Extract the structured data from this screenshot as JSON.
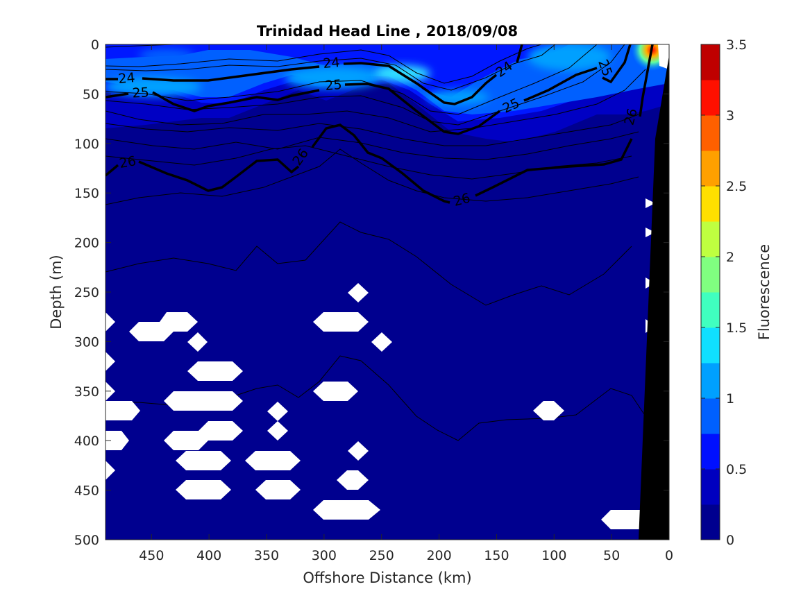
{
  "chart_data": {
    "type": "heatmap",
    "title": "Trinidad Head Line , 2018/09/08",
    "xlabel": "Offshore Distance (km)",
    "ylabel": "Depth (m)",
    "xlim": [
      490,
      0
    ],
    "ylim": [
      0,
      500
    ],
    "x_reversed": true,
    "y_reversed": true,
    "x_ticks": [
      "450",
      "400",
      "350",
      "300",
      "250",
      "200",
      "150",
      "100",
      "50",
      "0"
    ],
    "x_tick_values": [
      450,
      400,
      350,
      300,
      250,
      200,
      150,
      100,
      50,
      0
    ],
    "y_ticks": [
      "0",
      "50",
      "100",
      "150",
      "200",
      "250",
      "300",
      "350",
      "400",
      "450",
      "500"
    ],
    "y_tick_values": [
      0,
      50,
      100,
      150,
      200,
      250,
      300,
      350,
      400,
      450,
      500
    ],
    "colorbar": {
      "label": "Fluorescence",
      "range": [
        0,
        3.5
      ],
      "ticks": [
        "0",
        "0.5",
        "1",
        "1.5",
        "2",
        "2.5",
        "3",
        "3.5"
      ],
      "tick_values": [
        0,
        0.5,
        1,
        1.5,
        2,
        2.5,
        3,
        3.5
      ],
      "levels": 14,
      "colors": [
        "#00008f",
        "#0000bf",
        "#0010ff",
        "#0060ff",
        "#00a0ff",
        "#10e0ff",
        "#40ffbf",
        "#80ff80",
        "#bfff40",
        "#ffe000",
        "#ffa000",
        "#ff6000",
        "#ff1000",
        "#bf0000"
      ]
    },
    "fluorescence_hotspots": [
      {
        "x": 470,
        "depth": 45,
        "value": 1.0
      },
      {
        "x": 420,
        "depth": 48,
        "value": 1.0
      },
      {
        "x": 290,
        "depth": 38,
        "value": 1.2
      },
      {
        "x": 250,
        "depth": 30,
        "value": 1.2
      },
      {
        "x": 200,
        "depth": 45,
        "value": 0.9
      },
      {
        "x": 80,
        "depth": 20,
        "value": 1.0
      },
      {
        "x": 15,
        "depth": 5,
        "value": 3.4
      }
    ],
    "density_contours": [
      {
        "label": "24",
        "x": [
          490,
          450,
          400,
          350,
          300,
          250,
          200,
          190,
          170,
          140,
          125,
          120
        ],
        "depth": [
          35,
          36,
          38,
          33,
          25,
          22,
          45,
          50,
          40,
          15,
          3,
          0
        ]
      },
      {
        "label": "25",
        "x": [
          490,
          450,
          420,
          400,
          370,
          350,
          300,
          250,
          200,
          190,
          160,
          120,
          80,
          50,
          35,
          25
        ],
        "depth": [
          52,
          53,
          63,
          62,
          55,
          58,
          40,
          40,
          80,
          85,
          75,
          63,
          50,
          40,
          20,
          0
        ]
      },
      {
        "label": "26",
        "x": [
          490,
          470,
          440,
          420,
          400,
          380,
          360,
          340,
          320,
          300,
          280,
          250,
          200,
          180,
          150,
          130,
          80,
          60,
          40,
          30,
          20
        ],
        "depth": [
          130,
          118,
          120,
          130,
          145,
          130,
          115,
          120,
          125,
          95,
          80,
          110,
          155,
          158,
          140,
          130,
          120,
          118,
          105,
          75,
          0
        ]
      }
    ],
    "thin_contour_depths": [
      160,
      200,
      240,
      370
    ]
  }
}
